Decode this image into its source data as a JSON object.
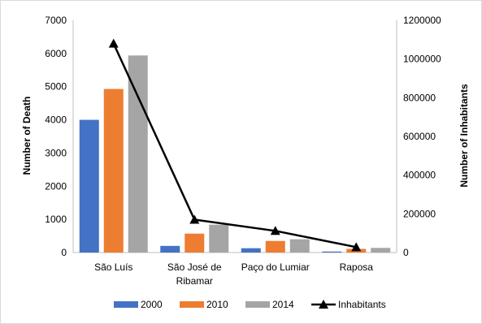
{
  "chart_data": {
    "type": "bar",
    "categories": [
      "São Luís",
      "São José de Ribamar",
      "Paço do Lumiar",
      "Raposa"
    ],
    "category_lines": [
      [
        "São Luís"
      ],
      [
        "São José de",
        "Ribamar"
      ],
      [
        "Paço do Lumiar"
      ],
      [
        "Raposa"
      ]
    ],
    "series": [
      {
        "name": "2000",
        "type": "bar",
        "axis": "left",
        "color": "#4472C4",
        "values": [
          4000,
          200,
          130,
          30
        ]
      },
      {
        "name": "2010",
        "type": "bar",
        "axis": "left",
        "color": "#ED7D31",
        "values": [
          4930,
          570,
          350,
          110
        ]
      },
      {
        "name": "2014",
        "type": "bar",
        "axis": "left",
        "color": "#A5A5A5",
        "values": [
          5940,
          840,
          400,
          140
        ]
      },
      {
        "name": "Inhabitants",
        "type": "line",
        "axis": "right",
        "color": "#000000",
        "marker": "triangle",
        "values": [
          1080000,
          170000,
          112000,
          28000
        ]
      }
    ],
    "title": "",
    "xlabel": "",
    "ylabel": "Number of Death",
    "y2label": "Number of Inhabitants",
    "ylim": [
      0,
      7000
    ],
    "yticks": [
      0,
      1000,
      2000,
      3000,
      4000,
      5000,
      6000,
      7000
    ],
    "y2lim": [
      0,
      1200000
    ],
    "y2ticks": [
      0,
      200000,
      400000,
      600000,
      800000,
      1000000,
      1200000
    ],
    "grid": false,
    "legend": "bottom"
  }
}
